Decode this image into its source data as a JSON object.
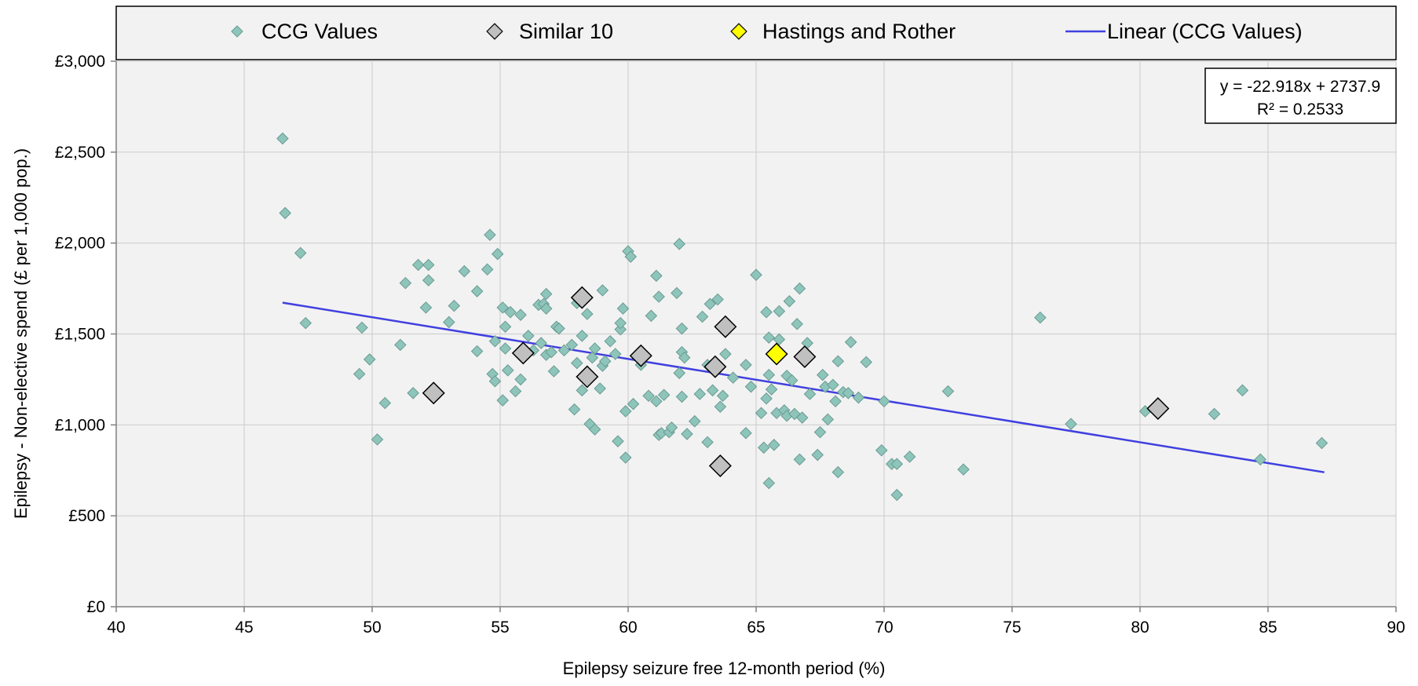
{
  "chart_data": {
    "type": "scatter",
    "title": "",
    "xlabel": "Epilepsy seizure free 12-month period (%)",
    "ylabel": "Epilepsy - Non-elective spend (£ per 1,000 pop.)",
    "xlim": [
      40,
      90
    ],
    "ylim": [
      0,
      3000
    ],
    "x_ticks": [
      "40",
      "45",
      "50",
      "55",
      "60",
      "65",
      "70",
      "75",
      "80",
      "85",
      "90"
    ],
    "y_ticks": [
      "£0",
      "£500",
      "£1,000",
      "£1,500",
      "£2,000",
      "£2,500",
      "£3,000"
    ],
    "grid": true,
    "legend_position": "top",
    "legend": [
      "CCG Values",
      "Similar 10",
      "Hastings and Rother",
      "Linear (CCG Values)"
    ],
    "colors": {
      "ccg": "#8ec5bb",
      "similar": "#c0c0c0",
      "hastings": "#ffff00",
      "trend": "#4040e0",
      "plot_bg": "#f2f2f2",
      "grid": "#d0d0d0"
    },
    "trendline": {
      "name": "Linear (CCG Values)",
      "slope": -22.918,
      "intercept": 2737.9,
      "x_range": [
        46.5,
        87.2
      ],
      "equation": "y = -22.918x + 2737.9",
      "r_squared": "R² = 0.2533"
    },
    "series": [
      {
        "name": "CCG Values",
        "points": [
          [
            46.5,
            2575
          ],
          [
            46.6,
            2165
          ],
          [
            47.2,
            1945
          ],
          [
            47.4,
            1560
          ],
          [
            49.6,
            1535
          ],
          [
            49.5,
            1280
          ],
          [
            49.9,
            1360
          ],
          [
            50.2,
            920
          ],
          [
            50.5,
            1120
          ],
          [
            51.1,
            1440
          ],
          [
            51.3,
            1780
          ],
          [
            51.6,
            1175
          ],
          [
            51.8,
            1880
          ],
          [
            52.1,
            1645
          ],
          [
            52.2,
            1880
          ],
          [
            52.2,
            1795
          ],
          [
            53,
            1565
          ],
          [
            53.2,
            1655
          ],
          [
            53.6,
            1845
          ],
          [
            54.1,
            1735
          ],
          [
            54.1,
            1405
          ],
          [
            54.5,
            1855
          ],
          [
            54.6,
            2045
          ],
          [
            54.7,
            1280
          ],
          [
            54.8,
            1460
          ],
          [
            54.8,
            1240
          ],
          [
            54.9,
            1940
          ],
          [
            55.1,
            1645
          ],
          [
            55.1,
            1135
          ],
          [
            55.2,
            1420
          ],
          [
            55.2,
            1540
          ],
          [
            55.3,
            1300
          ],
          [
            55.4,
            1620
          ],
          [
            55.6,
            1185
          ],
          [
            55.8,
            1605
          ],
          [
            55.8,
            1250
          ],
          [
            56.1,
            1490
          ],
          [
            56.3,
            1410
          ],
          [
            56.5,
            1660
          ],
          [
            56.6,
            1450
          ],
          [
            56.7,
            1665
          ],
          [
            56.8,
            1720
          ],
          [
            56.8,
            1640
          ],
          [
            56.8,
            1385
          ],
          [
            57,
            1400
          ],
          [
            57.1,
            1295
          ],
          [
            57.2,
            1540
          ],
          [
            57.3,
            1530
          ],
          [
            57.5,
            1410
          ],
          [
            57.8,
            1440
          ],
          [
            57.9,
            1085
          ],
          [
            58,
            1670
          ],
          [
            58,
            1340
          ],
          [
            58.2,
            1490
          ],
          [
            58.2,
            1190
          ],
          [
            58.4,
            1610
          ],
          [
            58.5,
            1005
          ],
          [
            58.6,
            1370
          ],
          [
            58.7,
            975
          ],
          [
            58.7,
            1420
          ],
          [
            58.9,
            1200
          ],
          [
            59,
            1740
          ],
          [
            59,
            1325
          ],
          [
            59.1,
            1350
          ],
          [
            59.3,
            1460
          ],
          [
            59.5,
            1390
          ],
          [
            59.6,
            910
          ],
          [
            59.7,
            1525
          ],
          [
            59.7,
            1560
          ],
          [
            59.8,
            1640
          ],
          [
            59.9,
            820
          ],
          [
            59.9,
            1075
          ],
          [
            60,
            1955
          ],
          [
            60.1,
            1925
          ],
          [
            60.3,
            1380
          ],
          [
            60.2,
            1115
          ],
          [
            60.5,
            1330
          ],
          [
            60.8,
            1160
          ],
          [
            60.9,
            1600
          ],
          [
            61.1,
            1130
          ],
          [
            61.1,
            1820
          ],
          [
            61.2,
            945
          ],
          [
            61.2,
            1705
          ],
          [
            61.3,
            955
          ],
          [
            61.4,
            1165
          ],
          [
            61.6,
            960
          ],
          [
            61.7,
            985
          ],
          [
            61.9,
            1725
          ],
          [
            62,
            1995
          ],
          [
            62,
            1285
          ],
          [
            62.1,
            1530
          ],
          [
            62.1,
            1400
          ],
          [
            62.1,
            1155
          ],
          [
            62.2,
            1370
          ],
          [
            62.3,
            950
          ],
          [
            62.6,
            1020
          ],
          [
            62.8,
            1170
          ],
          [
            62.9,
            1595
          ],
          [
            63.1,
            905
          ],
          [
            63.1,
            1330
          ],
          [
            63.2,
            1665
          ],
          [
            63.3,
            1190
          ],
          [
            63.5,
            1690
          ],
          [
            63.6,
            1100
          ],
          [
            63.7,
            1160
          ],
          [
            63.8,
            1390
          ],
          [
            64.1,
            1260
          ],
          [
            64.6,
            955
          ],
          [
            64.6,
            1330
          ],
          [
            64.8,
            1210
          ],
          [
            65,
            1825
          ],
          [
            65.2,
            1065
          ],
          [
            65.3,
            875
          ],
          [
            65.4,
            1620
          ],
          [
            65.4,
            1145
          ],
          [
            65.5,
            1480
          ],
          [
            65.5,
            680
          ],
          [
            65.5,
            1275
          ],
          [
            65.6,
            1195
          ],
          [
            65.7,
            890
          ],
          [
            65.8,
            1065
          ],
          [
            65.9,
            1470
          ],
          [
            65.9,
            1625
          ],
          [
            66.1,
            1080
          ],
          [
            66.2,
            1050
          ],
          [
            66.2,
            1270
          ],
          [
            66.3,
            1680
          ],
          [
            66.4,
            1245
          ],
          [
            66.5,
            1060
          ],
          [
            66.6,
            1555
          ],
          [
            66.7,
            1750
          ],
          [
            66.7,
            810
          ],
          [
            66.8,
            1040
          ],
          [
            67,
            1450
          ],
          [
            67.1,
            1170
          ],
          [
            67.4,
            835
          ],
          [
            67.5,
            960
          ],
          [
            67.6,
            1275
          ],
          [
            67.7,
            1210
          ],
          [
            67.8,
            1030
          ],
          [
            68,
            1220
          ],
          [
            68.1,
            1130
          ],
          [
            68.2,
            1350
          ],
          [
            68.2,
            740
          ],
          [
            68.4,
            1180
          ],
          [
            68.6,
            1175
          ],
          [
            68.7,
            1455
          ],
          [
            69,
            1150
          ],
          [
            69.3,
            1345
          ],
          [
            69.9,
            860
          ],
          [
            70,
            1130
          ],
          [
            70.3,
            785
          ],
          [
            70.5,
            785
          ],
          [
            70.5,
            615
          ],
          [
            71,
            825
          ],
          [
            72.5,
            1185
          ],
          [
            73.1,
            755
          ],
          [
            76.1,
            1590
          ],
          [
            77.3,
            1005
          ],
          [
            80.2,
            1075
          ],
          [
            82.9,
            1060
          ],
          [
            84,
            1190
          ],
          [
            84.7,
            810
          ],
          [
            87.1,
            900
          ]
        ]
      },
      {
        "name": "Similar 10",
        "points": [
          [
            52.4,
            1175
          ],
          [
            55.9,
            1395
          ],
          [
            58.2,
            1700
          ],
          [
            58.4,
            1265
          ],
          [
            60.5,
            1380
          ],
          [
            63.4,
            1320
          ],
          [
            63.6,
            775
          ],
          [
            63.8,
            1540
          ],
          [
            66.9,
            1375
          ],
          [
            80.7,
            1090
          ]
        ]
      },
      {
        "name": "Hastings and Rother",
        "points": [
          [
            65.8,
            1390
          ]
        ]
      }
    ]
  }
}
